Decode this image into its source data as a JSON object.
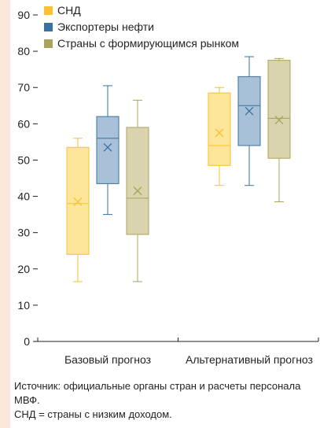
{
  "chart_data": {
    "type": "box",
    "ylim": [
      0,
      90
    ],
    "yticks": [
      0,
      10,
      20,
      30,
      40,
      50,
      60,
      70,
      80,
      90
    ],
    "categories": [
      "Базовый прогноз",
      "Альтернативный прогноз"
    ],
    "legend_position": "top-left",
    "grid": false,
    "series": [
      {
        "name": "СНД",
        "color": "#f9c22e",
        "fill": "#fde59a",
        "boxes": [
          {
            "whisker_low": 16.5,
            "q1": 24,
            "median": 38,
            "q3": 53.5,
            "whisker_high": 56,
            "mean": 38.5
          },
          {
            "whisker_low": 43,
            "q1": 48.5,
            "median": 54,
            "q3": 68.5,
            "whisker_high": 70,
            "mean": 57.5
          }
        ]
      },
      {
        "name": "Экспортеры нефти",
        "color": "#39729e",
        "fill": "#a8c1d8",
        "boxes": [
          {
            "whisker_low": 35,
            "q1": 43.5,
            "median": 56,
            "q3": 62,
            "whisker_high": 70.5,
            "mean": 53.5
          },
          {
            "whisker_low": 43,
            "q1": 54,
            "median": 65,
            "q3": 73,
            "whisker_high": 78.5,
            "mean": 63.5
          }
        ]
      },
      {
        "name": "Страны с формирующимся рынком",
        "color": "#a9a35b",
        "fill": "#d9d4ad",
        "boxes": [
          {
            "whisker_low": 16.5,
            "q1": 29.5,
            "median": 39.5,
            "q3": 59,
            "whisker_high": 66.5,
            "mean": 41.5
          },
          {
            "whisker_low": 38.5,
            "q1": 50.5,
            "median": 61.5,
            "q3": 77.5,
            "whisker_high": 78,
            "mean": 61
          }
        ]
      }
    ]
  },
  "footnote": {
    "source": "Источник: официальные органы стран и расчеты персонала МВФ.",
    "note": "СНД = страны с низким доходом."
  }
}
